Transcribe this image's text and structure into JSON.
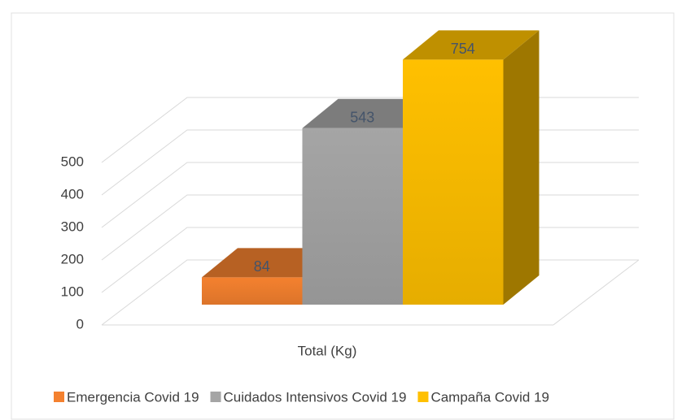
{
  "chart_data": {
    "type": "bar3d",
    "categories": [
      "Total  (Kg)"
    ],
    "series": [
      {
        "name": "Emergencia Covid 19",
        "color": "#f4812f",
        "values": [
          84
        ]
      },
      {
        "name": "Cuidados Intensivos Covid 19",
        "color": "#a5a5a5",
        "values": [
          543
        ]
      },
      {
        "name": "Campaña Covid 19",
        "color": "#ffc000",
        "values": [
          754
        ]
      }
    ],
    "ylim": [
      0,
      800
    ],
    "yticks": [
      0,
      100,
      200,
      300,
      400,
      500
    ],
    "grid": true,
    "legend": "bottom"
  }
}
